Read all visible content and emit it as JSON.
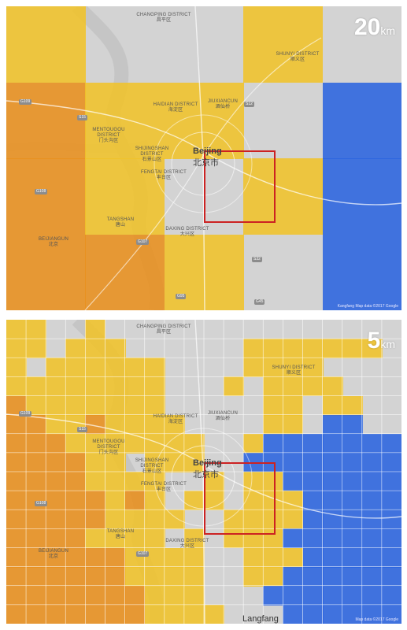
{
  "colors": {
    "orange": "#e8901e",
    "yellow": "#f0c32a",
    "gray": "#c9c9c9",
    "blue": "#2b64df",
    "selection": "#cc2222"
  },
  "icons": [
    "scale-label",
    "map-tile"
  ],
  "top_panel": {
    "scale_value": "20",
    "scale_unit": "km",
    "grid_cols": 5,
    "grid_rows": 4,
    "cells": [
      [
        "Y",
        "G",
        "G",
        "Y",
        "G"
      ],
      [
        "O",
        "Y",
        "Y",
        "G",
        "B"
      ],
      [
        "O",
        "Y",
        "G",
        "Y",
        "B"
      ],
      [
        "O",
        "O",
        "Y",
        "G",
        "B"
      ]
    ],
    "attribution": "Kangfang   Map data ©2017 Google"
  },
  "bottom_panel": {
    "scale_value": "5",
    "scale_unit": "km",
    "grid_cols": 20,
    "grid_rows": 16,
    "cells": [
      "YYGGYGGGGGGGGGGGGGGG",
      "YYGYYYGGGGGGYYYYYYYG",
      "YGYYYYYYGGGGYYYYGGGG",
      "YYYYYYYYGGGYGYYYYGGG",
      "OYYYYYYYGGGGGYYGYYGG",
      "OOYYOYYYYGGGGYYGBBGG",
      "OOOYYYYYYYGGYBBBBBBB",
      "OOOOYYGYYYGGBBBBBBBB",
      "OOOOYYYYGGYGYYBBBBBB",
      "OOOOOYOYGYYGYYYBBBBB",
      "OOOOOYYYYGGYYYYBBBBB",
      "OOOOYYYYGYGYYYBBBBBB",
      "OOOOOOYYYYGGYYYBBBBB",
      "OOOOOOYYYYGGYYBBBBBB",
      "OOOOOOOYYYGGGBBBBBBB",
      "OOOOOOOYYYYGGGBBBBBB"
    ],
    "attribution": "Map data ©2017 Google",
    "bottom_place": "Langfang"
  },
  "map_labels": [
    {
      "en": "Changping District",
      "zh": "昌平区",
      "key": "changping"
    },
    {
      "en": "Shunyi District",
      "zh": "顺义区",
      "key": "shunyi"
    },
    {
      "en": "Mentougou District",
      "zh": "门头沟区",
      "key": "mentougou"
    },
    {
      "en": "Haidian District",
      "zh": "海淀区",
      "key": "haidian"
    },
    {
      "en": "Jiuxiancun",
      "zh": "酒仙桥",
      "key": "jiuxiancun"
    },
    {
      "en": "Shijingshan District",
      "zh": "石景山区",
      "key": "shijingshan"
    },
    {
      "en": "Fengtai District",
      "zh": "丰台区",
      "key": "fengtai"
    },
    {
      "en": "Tangshan",
      "zh": "唐山",
      "key": "tangshan"
    },
    {
      "en": "Beijiangun",
      "zh": "北京",
      "key": "beijiangun"
    },
    {
      "en": "Daxing District",
      "zh": "大兴区",
      "key": "daxing"
    }
  ],
  "city": {
    "en": "Beijing",
    "zh": "北京市"
  },
  "road_shields": [
    "G109",
    "G108",
    "S12",
    "G107",
    "S32",
    "G95",
    "G45",
    "S15"
  ]
}
